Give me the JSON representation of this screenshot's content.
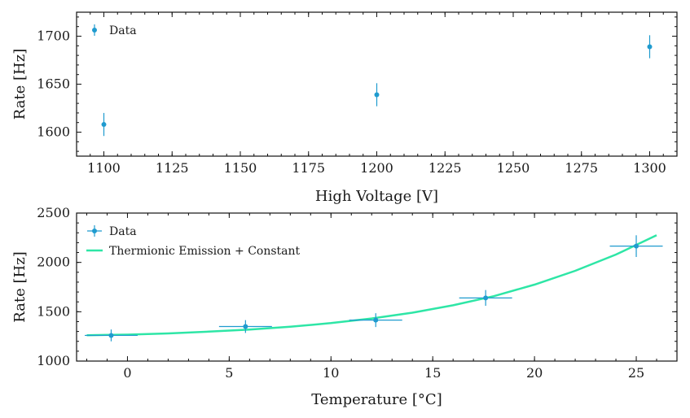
{
  "colors": {
    "data": "#1f9bcf",
    "fit": "#2ee6a6",
    "axes": "#111111"
  },
  "chart_data": [
    {
      "type": "scatter",
      "xlabel": "High Voltage [V]",
      "ylabel": "Rate [Hz]",
      "xlim": [
        1090,
        1310
      ],
      "ylim": [
        1575,
        1725
      ],
      "xticks": [
        1100,
        1125,
        1150,
        1175,
        1200,
        1225,
        1250,
        1275,
        1300
      ],
      "yticks": [
        1600,
        1650,
        1700
      ],
      "xtick_labels": [
        "1100",
        "1125",
        "1150",
        "1175",
        "1200",
        "1225",
        "1250",
        "1275",
        "1300"
      ],
      "ytick_labels": [
        "1600",
        "1650",
        "1700"
      ],
      "legend": {
        "position": "top-left",
        "entries": [
          "Data"
        ]
      },
      "series": [
        {
          "name": "Data",
          "x": [
            1100,
            1200,
            1300
          ],
          "y": [
            1608,
            1639,
            1689
          ],
          "yerr": [
            12,
            12,
            12
          ]
        }
      ]
    },
    {
      "type": "scatter",
      "xlabel": "Temperature [°C]",
      "ylabel": "Rate [Hz]",
      "xlim": [
        -2.5,
        27.0
      ],
      "ylim": [
        1000,
        2500
      ],
      "xticks": [
        0,
        5,
        10,
        15,
        20,
        25
      ],
      "yticks": [
        1000,
        1500,
        2000,
        2500
      ],
      "xtick_labels": [
        "0",
        "5",
        "10",
        "15",
        "20",
        "25"
      ],
      "ytick_labels": [
        "1000",
        "1500",
        "2000",
        "2500"
      ],
      "legend": {
        "position": "top-left",
        "entries": [
          "Data",
          "Thermionic Emission + Constant"
        ]
      },
      "series": [
        {
          "name": "Data",
          "x": [
            -0.8,
            5.8,
            12.2,
            17.6,
            25.0
          ],
          "y": [
            1260,
            1350,
            1415,
            1640,
            2165
          ],
          "xerr": [
            1.3,
            1.3,
            1.3,
            1.3,
            1.3
          ],
          "yerr": [
            60,
            65,
            70,
            80,
            110
          ]
        }
      ],
      "fit": {
        "name": "Thermionic Emission + Constant",
        "x": [
          -2.0,
          0,
          2,
          4,
          6,
          8,
          10,
          12,
          14,
          16,
          18,
          20,
          22,
          24,
          26
        ],
        "y": [
          1262,
          1268,
          1280,
          1298,
          1320,
          1348,
          1385,
          1432,
          1490,
          1565,
          1658,
          1775,
          1915,
          2080,
          2275
        ]
      }
    }
  ]
}
